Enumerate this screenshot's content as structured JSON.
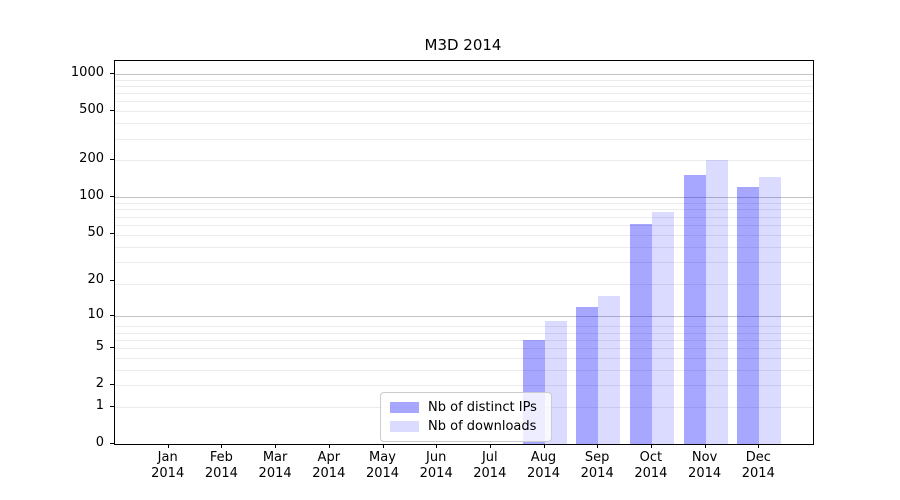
{
  "title": "M3D 2014",
  "legend": {
    "items": [
      {
        "label": "Nb of distinct IPs",
        "series": "ips"
      },
      {
        "label": "Nb of downloads",
        "series": "dls"
      }
    ]
  },
  "y_axis": {
    "tick_labels": [
      "0",
      "1",
      "2",
      "5",
      "10",
      "20",
      "50",
      "100",
      "200",
      "500",
      "1000"
    ]
  },
  "x_axis": {
    "months": [
      "Jan",
      "Feb",
      "Mar",
      "Apr",
      "May",
      "Jun",
      "Jul",
      "Aug",
      "Sep",
      "Oct",
      "Nov",
      "Dec"
    ],
    "year": "2014"
  },
  "colors": {
    "bar_ips": "#a6a6fa",
    "bar_downloads": "#dcdcfc",
    "grid_major": "#c3c3c3",
    "grid_minor": "#ebebeb",
    "spine": "#000000"
  },
  "chart_data": {
    "type": "bar",
    "title": "M3D 2014",
    "categories": [
      "Jan 2014",
      "Feb 2014",
      "Mar 2014",
      "Apr 2014",
      "May 2014",
      "Jun 2014",
      "Jul 2014",
      "Aug 2014",
      "Sep 2014",
      "Oct 2014",
      "Nov 2014",
      "Dec 2014"
    ],
    "series": [
      {
        "name": "Nb of distinct IPs",
        "values": [
          0,
          0,
          0,
          0,
          0,
          0,
          0,
          6,
          12,
          60,
          150,
          120
        ]
      },
      {
        "name": "Nb of downloads",
        "values": [
          0,
          0,
          0,
          0,
          0,
          0,
          0,
          9,
          15,
          75,
          200,
          145
        ]
      }
    ],
    "xlabel": "",
    "ylabel": "",
    "y_ticks": [
      0,
      1,
      2,
      5,
      10,
      20,
      50,
      100,
      200,
      500,
      1000
    ],
    "ylim": [
      0,
      1276
    ],
    "yscale": "log-like: position proportional to log10(value+1)",
    "grid": "horizontal, major (10/100/1000) and minor log subdivisions",
    "legend_position": "lower center"
  }
}
